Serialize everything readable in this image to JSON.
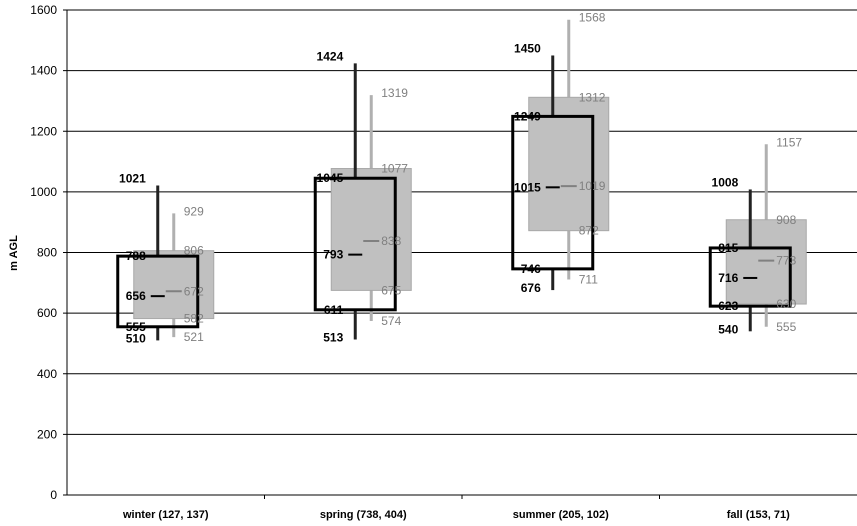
{
  "chart_data": {
    "type": "box",
    "ylabel": "m AGL",
    "ylim": [
      0,
      1600
    ],
    "yticks": [
      0,
      200,
      400,
      600,
      800,
      1000,
      1200,
      1400,
      1600
    ],
    "grid": true,
    "categories": [
      "winter (127, 137)",
      "spring (738, 404)",
      "summer (205, 102)",
      "fall (153, 71)"
    ],
    "series": [
      {
        "style": "black outline",
        "boxes": [
          {
            "min": 510,
            "q1": 555,
            "median": 656,
            "q3": 788,
            "max": 1021
          },
          {
            "min": 513,
            "q1": 611,
            "median": 793,
            "q3": 1045,
            "max": 1424
          },
          {
            "min": 676,
            "q1": 746,
            "median": 1015,
            "q3": 1249,
            "max": 1450
          },
          {
            "min": 540,
            "q1": 623,
            "median": 716,
            "q3": 815,
            "max": 1008
          }
        ]
      },
      {
        "style": "gray fill",
        "boxes": [
          {
            "min": 521,
            "q1": 582,
            "median": 672,
            "q3": 806,
            "max": 929
          },
          {
            "min": 574,
            "q1": 675,
            "median": 838,
            "q3": 1077,
            "max": 1319
          },
          {
            "min": 711,
            "q1": 872,
            "median": 1019,
            "q3": 1312,
            "max": 1568
          },
          {
            "min": 555,
            "q1": 630,
            "median": 773,
            "q3": 908,
            "max": 1157
          }
        ]
      }
    ],
    "colors": {
      "black_series": "#000000",
      "gray_series_fill": "#c0c0c0",
      "gray_series_text": "#808080"
    }
  }
}
